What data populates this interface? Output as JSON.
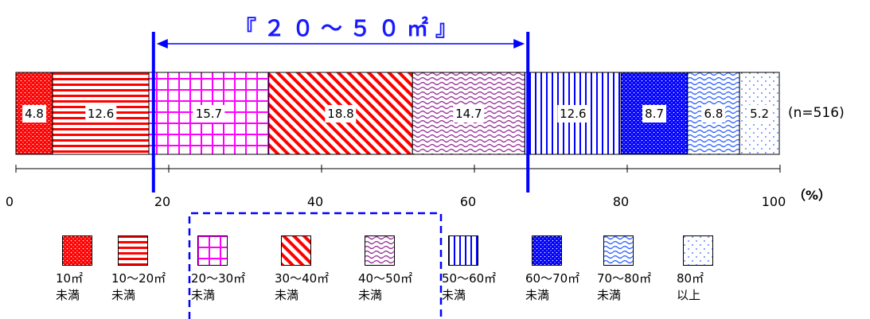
{
  "chart_data": {
    "type": "stacked-bar",
    "title": "『２０～５０㎡』",
    "n_label": "(n=516)",
    "axis_unit": "（%）",
    "x_ticks": [
      0,
      20,
      40,
      60,
      80,
      100
    ],
    "xlim": [
      0,
      100
    ],
    "bracket_range": [
      18,
      67
    ],
    "series": [
      {
        "name": "10㎡未満",
        "legend_lines": [
          "10㎡",
          "未満"
        ],
        "value": 4.8,
        "color": "#ff0000",
        "pattern": "dots-dense"
      },
      {
        "name": "10～20㎡未満",
        "legend_lines": [
          "10～20㎡",
          "未満"
        ],
        "value": 12.6,
        "color": "#ff0000",
        "pattern": "hlines"
      },
      {
        "name": "20～30㎡未満",
        "legend_lines": [
          "20～30㎡",
          "未満"
        ],
        "value": 15.7,
        "color": "#ff00ff",
        "pattern": "grid"
      },
      {
        "name": "30～40㎡未満",
        "legend_lines": [
          "30～40㎡",
          "未満"
        ],
        "value": 18.8,
        "color": "#ff0000",
        "pattern": "diag"
      },
      {
        "name": "40～50㎡未満",
        "legend_lines": [
          "40～50㎡",
          "未満"
        ],
        "value": 14.7,
        "color": "#993399",
        "pattern": "wave"
      },
      {
        "name": "50～60㎡未満",
        "legend_lines": [
          "50～60㎡",
          "未満"
        ],
        "value": 12.6,
        "color": "#0000ff",
        "pattern": "vlines"
      },
      {
        "name": "60～70㎡未満",
        "legend_lines": [
          "60～70㎡",
          "未満"
        ],
        "value": 8.7,
        "color": "#0000ff",
        "pattern": "dots-solid"
      },
      {
        "name": "70～80㎡未満",
        "legend_lines": [
          "70～80㎡",
          "未満"
        ],
        "value": 6.8,
        "color": "#3366ff",
        "pattern": "wave"
      },
      {
        "name": "80㎡以上",
        "legend_lines": [
          "80㎡",
          "以上"
        ],
        "value": 5.2,
        "color": "#3366ff",
        "pattern": "dots-sparse"
      }
    ]
  }
}
